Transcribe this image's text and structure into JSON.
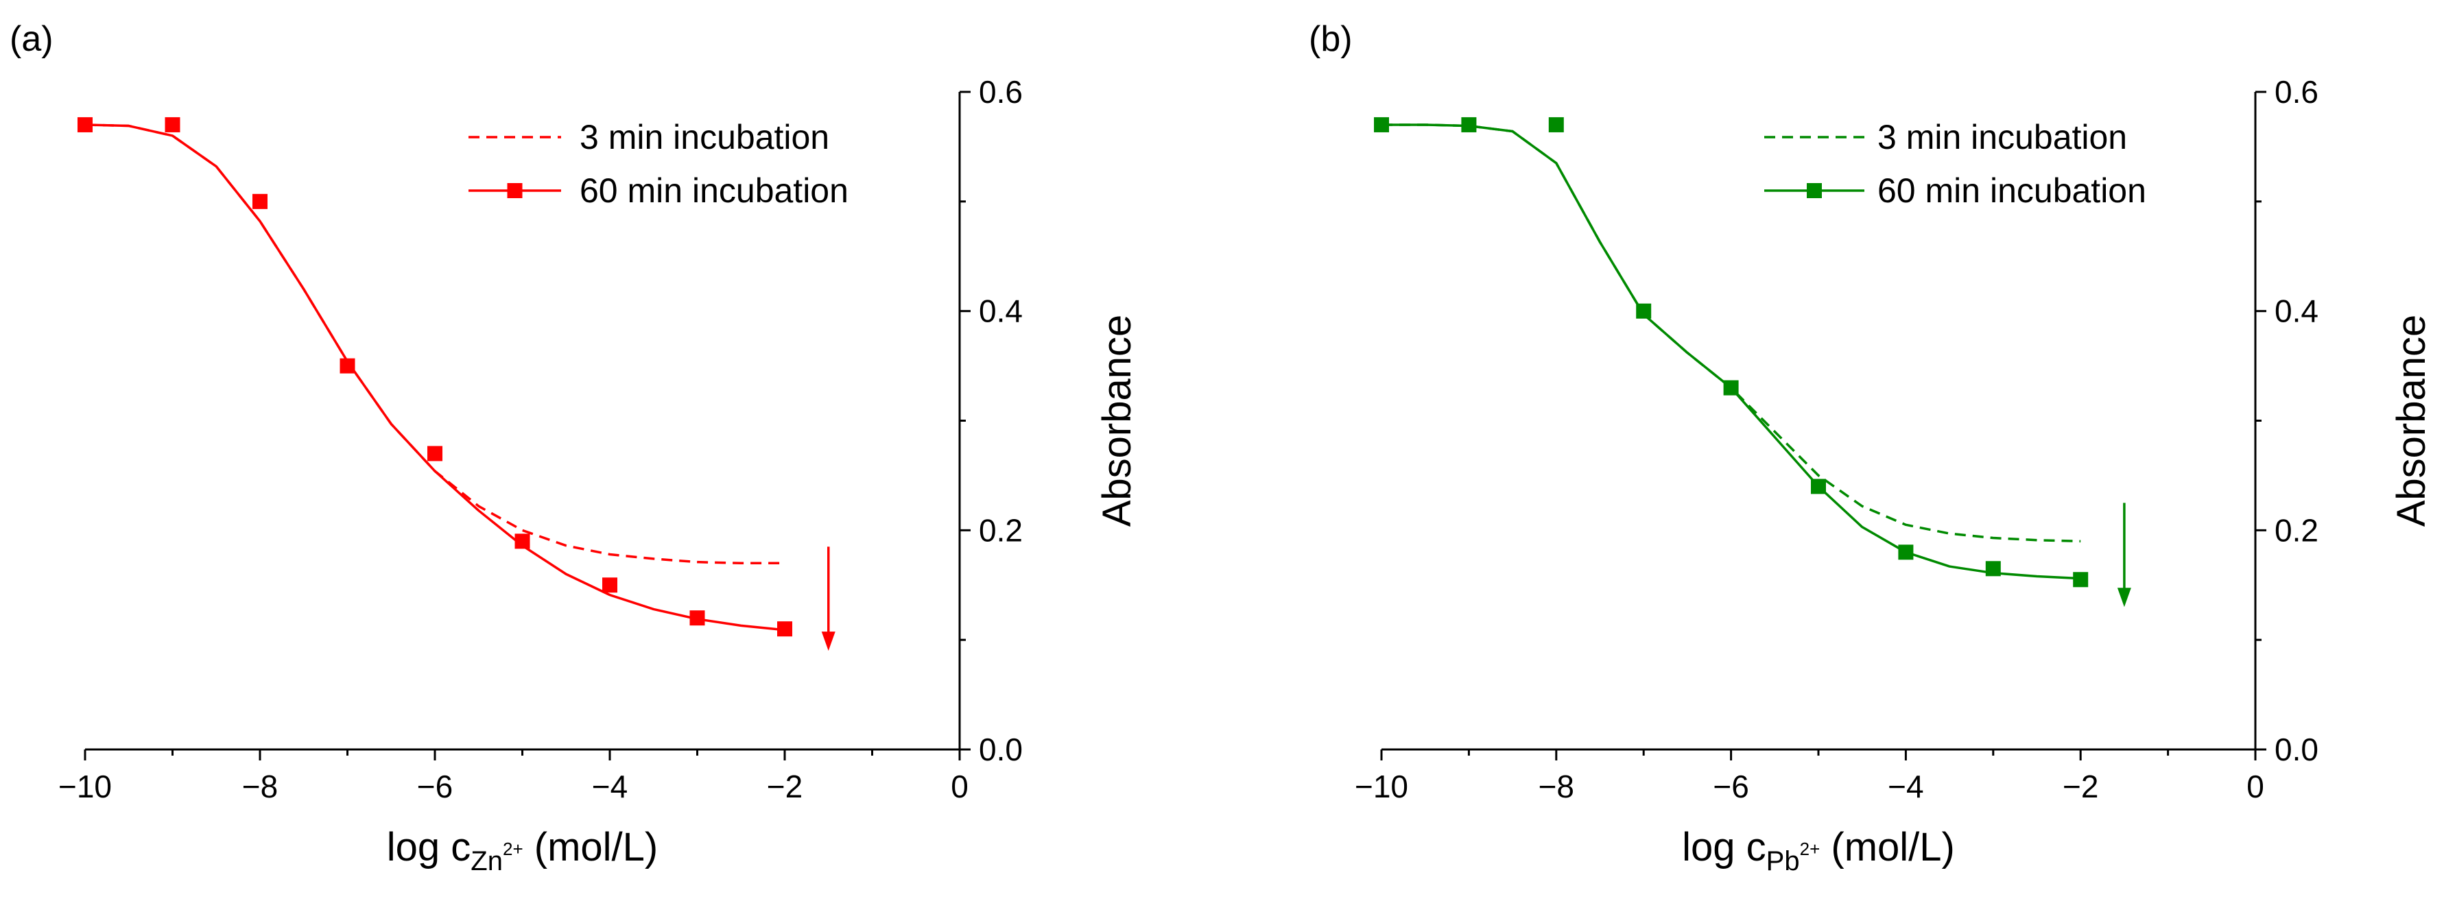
{
  "chart_data": [
    {
      "panel_label": "(a)",
      "type": "line",
      "color": "#ff0000",
      "xlabel": {
        "prefix": "log c",
        "subscript": "Zn",
        "superscript": "2+",
        "suffix": " (mol/L)"
      },
      "ylabel": "Absorbance",
      "xlim": [
        -10,
        0
      ],
      "ylim": [
        0,
        0.6
      ],
      "x_ticks": [
        -10,
        -8,
        -6,
        -4,
        -2,
        0
      ],
      "x_tick_labels": [
        "−10",
        "−8",
        "−6",
        "−4",
        "−2",
        "0"
      ],
      "y_ticks": [
        0,
        0.2,
        0.4,
        0.6
      ],
      "y_tick_labels": [
        "0.0",
        "0.2",
        "0.4",
        "0.6"
      ],
      "y_axis_side": "right",
      "legend_position": "top-right",
      "series": [
        {
          "name": "3 min incubation",
          "style": "dashed",
          "x": [
            -10,
            -9.5,
            -9,
            -8.5,
            -8,
            -7.5,
            -7,
            -6.5,
            -6,
            -5.5,
            -5,
            -4.5,
            -4,
            -3.5,
            -3,
            -2.5,
            -2
          ],
          "values": [
            0.57,
            0.569,
            0.56,
            0.532,
            0.482,
            0.42,
            0.354,
            0.297,
            0.254,
            0.222,
            0.2,
            0.186,
            0.178,
            0.174,
            0.171,
            0.17,
            0.17
          ]
        },
        {
          "name": "60 min incubation",
          "style": "solid",
          "x": [
            -10,
            -9,
            -8,
            -7,
            -6,
            -5,
            -4,
            -3,
            -2
          ],
          "values": [
            0.57,
            0.57,
            0.5,
            0.35,
            0.27,
            0.19,
            0.15,
            0.12,
            0.11
          ],
          "fit_x": [
            -10,
            -9.5,
            -9,
            -8.5,
            -8,
            -7.5,
            -7,
            -6.5,
            -6,
            -5.5,
            -5,
            -4.5,
            -4,
            -3.5,
            -3,
            -2.5,
            -2
          ],
          "fit_values": [
            0.57,
            0.569,
            0.56,
            0.532,
            0.482,
            0.42,
            0.354,
            0.297,
            0.254,
            0.218,
            0.186,
            0.16,
            0.141,
            0.128,
            0.119,
            0.113,
            0.109
          ]
        }
      ],
      "arrow": {
        "x": -1.5,
        "y_from": 0.185,
        "y_to": 0.09,
        "direction": "down"
      }
    },
    {
      "panel_label": "(b)",
      "type": "line",
      "color": "#008a00",
      "xlabel": {
        "prefix": "log c",
        "subscript": "Pb",
        "superscript": "2+",
        "suffix": " (mol/L)"
      },
      "ylabel": "Absorbance",
      "xlim": [
        -10,
        0
      ],
      "ylim": [
        0,
        0.6
      ],
      "x_ticks": [
        -10,
        -8,
        -6,
        -4,
        -2,
        0
      ],
      "x_tick_labels": [
        "−10",
        "−8",
        "−6",
        "−4",
        "−2",
        "0"
      ],
      "y_ticks": [
        0,
        0.2,
        0.4,
        0.6
      ],
      "y_tick_labels": [
        "0.0",
        "0.2",
        "0.4",
        "0.6"
      ],
      "y_axis_side": "right",
      "legend_position": "top-right",
      "series": [
        {
          "name": "3 min incubation",
          "style": "dashed",
          "x": [
            -10,
            -9.5,
            -9,
            -8.5,
            -8,
            -7.5,
            -7,
            -6.5,
            -6,
            -5.5,
            -5,
            -4.5,
            -4,
            -3.5,
            -3,
            -2.5,
            -2
          ],
          "values": [
            0.57,
            0.57,
            0.569,
            0.564,
            0.535,
            0.463,
            0.397,
            0.362,
            0.33,
            0.29,
            0.25,
            0.222,
            0.205,
            0.197,
            0.193,
            0.191,
            0.19
          ]
        },
        {
          "name": "60 min incubation",
          "style": "solid",
          "x": [
            -10,
            -9,
            -8,
            -7,
            -6,
            -5,
            -4,
            -3,
            -2
          ],
          "values": [
            0.57,
            0.57,
            0.57,
            0.4,
            0.33,
            0.24,
            0.18,
            0.165,
            0.155
          ],
          "fit_x": [
            -10,
            -9.5,
            -9,
            -8.5,
            -8,
            -7.5,
            -7,
            -6.5,
            -6,
            -5.5,
            -5,
            -4.5,
            -4,
            -3.5,
            -3,
            -2.5,
            -2
          ],
          "fit_values": [
            0.57,
            0.57,
            0.569,
            0.564,
            0.535,
            0.463,
            0.397,
            0.362,
            0.33,
            0.285,
            0.24,
            0.203,
            0.18,
            0.167,
            0.161,
            0.158,
            0.156
          ]
        }
      ],
      "arrow": {
        "x": -1.5,
        "y_from": 0.225,
        "y_to": 0.13,
        "direction": "down"
      }
    }
  ]
}
